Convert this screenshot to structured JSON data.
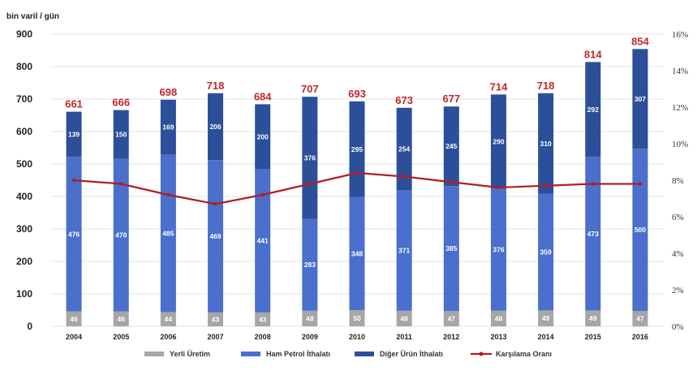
{
  "chart_data": {
    "type": "bar",
    "stacked": true,
    "ylabel": "bin varil / gün",
    "ylim": [
      0,
      900
    ],
    "y_ticks": [
      "0",
      "100",
      "200",
      "300",
      "400",
      "500",
      "600",
      "700",
      "800",
      "900"
    ],
    "y2lim": [
      0,
      16
    ],
    "y2_ticks": [
      "0%",
      "2%",
      "4%",
      "6%",
      "8%",
      "10%",
      "12%",
      "14%",
      "16%"
    ],
    "categories": [
      "2004",
      "2005",
      "2006",
      "2007",
      "2008",
      "2009",
      "2010",
      "2011",
      "2012",
      "2013",
      "2014",
      "2015",
      "2016"
    ],
    "series": [
      {
        "name": "Yerli Üretim",
        "color": "#a6a6a6",
        "values": [
          46,
          46,
          44,
          43,
          43,
          48,
          50,
          48,
          47,
          48,
          49,
          49,
          47
        ]
      },
      {
        "name": "Ham Petrol İthalatı",
        "color": "#4a6fcc",
        "values": [
          476,
          470,
          485,
          469,
          441,
          283,
          348,
          371,
          385,
          376,
          359,
          473,
          500
        ]
      },
      {
        "name": "Diğer Ürün İthalatı",
        "color": "#2c4f9a",
        "values": [
          139,
          150,
          169,
          206,
          200,
          376,
          295,
          254,
          245,
          290,
          310,
          292,
          307
        ]
      }
    ],
    "totals": [
      661,
      666,
      698,
      718,
      684,
      707,
      693,
      673,
      677,
      714,
      718,
      814,
      854
    ],
    "line_series": {
      "name": "Karşılama Oranı",
      "color": "#b01f24",
      "axis": "right",
      "values": [
        8.0,
        7.8,
        7.2,
        6.7,
        7.2,
        7.8,
        8.4,
        8.2,
        7.9,
        7.6,
        7.7,
        7.8,
        7.8
      ]
    },
    "legend_position": "bottom",
    "grid": "horizontal"
  }
}
